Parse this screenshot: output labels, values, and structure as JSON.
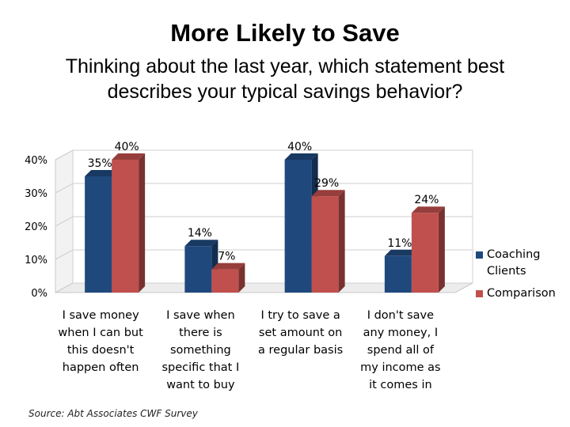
{
  "title": "More Likely to Save",
  "subtitle": "Thinking about the last year, which statement best describes your typical savings behavior?",
  "source": "Source: Abt Associates CWF Survey",
  "chart_data": {
    "type": "bar",
    "categories": [
      [
        "I save money",
        "when I can but",
        "this doesn't",
        "happen often"
      ],
      [
        "I save when",
        "there is",
        "something",
        "specific that I",
        "want to buy"
      ],
      [
        "I try to save a",
        "set amount on",
        "a regular basis"
      ],
      [
        "I don't save",
        "any money, I",
        "spend all of",
        "my income as",
        "it comes in"
      ]
    ],
    "series": [
      {
        "name": "Coaching Clients",
        "legend_lines": [
          "Coaching",
          "Clients"
        ],
        "values": [
          35,
          14,
          40,
          11
        ],
        "labels": [
          "35%",
          "14%",
          "40%",
          "11%"
        ],
        "color": "#1f497d"
      },
      {
        "name": "Comparison",
        "legend_lines": [
          "Comparison"
        ],
        "values": [
          40,
          7,
          29,
          24
        ],
        "labels": [
          "40%",
          "7%",
          "29%",
          "24%"
        ],
        "color": "#c0504d"
      }
    ],
    "ylim": [
      0,
      40
    ],
    "yticks": [
      0,
      10,
      20,
      30,
      40
    ],
    "ytick_labels": [
      "0%",
      "10%",
      "20%",
      "30%",
      "40%"
    ],
    "grid": true,
    "three_d": true,
    "legend_position": "right"
  }
}
